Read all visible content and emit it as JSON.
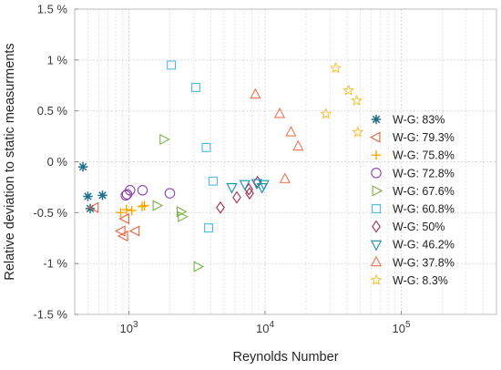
{
  "chart_data": {
    "type": "scatter",
    "title": "",
    "xlabel": "Reynolds Number",
    "ylabel": "Relative deviation to static measurments",
    "x_scale": "log",
    "xlim": [
      400,
      500000
    ],
    "ylim": [
      -1.5,
      1.5
    ],
    "x_ticks": [
      {
        "value": 1000,
        "base": "10",
        "exp": "3"
      },
      {
        "value": 10000,
        "base": "10",
        "exp": "4"
      },
      {
        "value": 100000,
        "base": "10",
        "exp": "5"
      }
    ],
    "y_ticks": [
      {
        "value": 1.5,
        "label": "1.5 %"
      },
      {
        "value": 1.0,
        "label": "1 %"
      },
      {
        "value": 0.5,
        "label": "0.5 %"
      },
      {
        "value": 0.0,
        "label": "0 %"
      },
      {
        "value": -0.5,
        "label": "-0.5 %"
      },
      {
        "value": -1.0,
        "label": "-1 %"
      },
      {
        "value": -1.5,
        "label": "-1.5 %"
      }
    ],
    "grid": true,
    "legend_position": "right",
    "series": [
      {
        "name": "W-G: 83%",
        "marker": "asterisk",
        "color": "#1f6f8b",
        "points": [
          [
            460,
            -0.05
          ],
          [
            500,
            -0.34
          ],
          [
            640,
            -0.33
          ],
          [
            520,
            -0.46
          ]
        ]
      },
      {
        "name": "W-G: 79.3%",
        "marker": "triangle-left",
        "color": "#e8603c",
        "points": [
          [
            560,
            -0.45
          ],
          [
            940,
            -0.56
          ],
          [
            880,
            -0.68
          ],
          [
            920,
            -0.73
          ],
          [
            1120,
            -0.68
          ]
        ]
      },
      {
        "name": "W-G: 75.8%",
        "marker": "plus",
        "color": "#f2a900",
        "points": [
          [
            870,
            -0.5
          ],
          [
            960,
            -0.47
          ],
          [
            1050,
            -0.48
          ],
          [
            1250,
            -0.44
          ],
          [
            1300,
            -0.43
          ]
        ]
      },
      {
        "name": "W-G: 72.8%",
        "marker": "circle",
        "color": "#8e44ad",
        "points": [
          [
            950,
            -0.33
          ],
          [
            970,
            -0.32
          ],
          [
            1020,
            -0.28
          ],
          [
            1260,
            -0.28
          ],
          [
            2000,
            -0.31
          ]
        ]
      },
      {
        "name": "W-G: 67.6%",
        "marker": "triangle-right",
        "color": "#77b142",
        "points": [
          [
            1600,
            -0.43
          ],
          [
            1800,
            0.22
          ],
          [
            2400,
            -0.49
          ],
          [
            2450,
            -0.54
          ],
          [
            3200,
            -1.03
          ]
        ]
      },
      {
        "name": "W-G: 60.8%",
        "marker": "square",
        "color": "#4fb8ea",
        "points": [
          [
            2050,
            0.95
          ],
          [
            3100,
            0.73
          ],
          [
            3700,
            0.14
          ],
          [
            3850,
            -0.65
          ],
          [
            4150,
            -0.19
          ]
        ]
      },
      {
        "name": "W-G: 50%",
        "marker": "diamond",
        "color": "#9e2f50",
        "points": [
          [
            4700,
            -0.45
          ],
          [
            6200,
            -0.35
          ],
          [
            7600,
            -0.27
          ],
          [
            7700,
            -0.31
          ],
          [
            8800,
            -0.2
          ]
        ]
      },
      {
        "name": "W-G: 46.2%",
        "marker": "triangle-down",
        "color": "#1a8fb5",
        "points": [
          [
            5700,
            -0.25
          ],
          [
            7100,
            -0.22
          ],
          [
            8700,
            -0.21
          ],
          [
            9500,
            -0.25
          ],
          [
            9800,
            -0.22
          ]
        ]
      },
      {
        "name": "W-G: 37.8%",
        "marker": "triangle-up",
        "color": "#ef7552",
        "points": [
          [
            8500,
            0.66
          ],
          [
            12800,
            0.47
          ],
          [
            14000,
            -0.17
          ],
          [
            15500,
            0.29
          ],
          [
            17500,
            0.15
          ]
        ]
      },
      {
        "name": "W-G: 8.3%",
        "marker": "star",
        "color": "#f6c342",
        "points": [
          [
            28000,
            0.47
          ],
          [
            33000,
            0.92
          ],
          [
            41000,
            0.7
          ],
          [
            47000,
            0.6
          ],
          [
            48000,
            0.29
          ]
        ]
      }
    ]
  }
}
